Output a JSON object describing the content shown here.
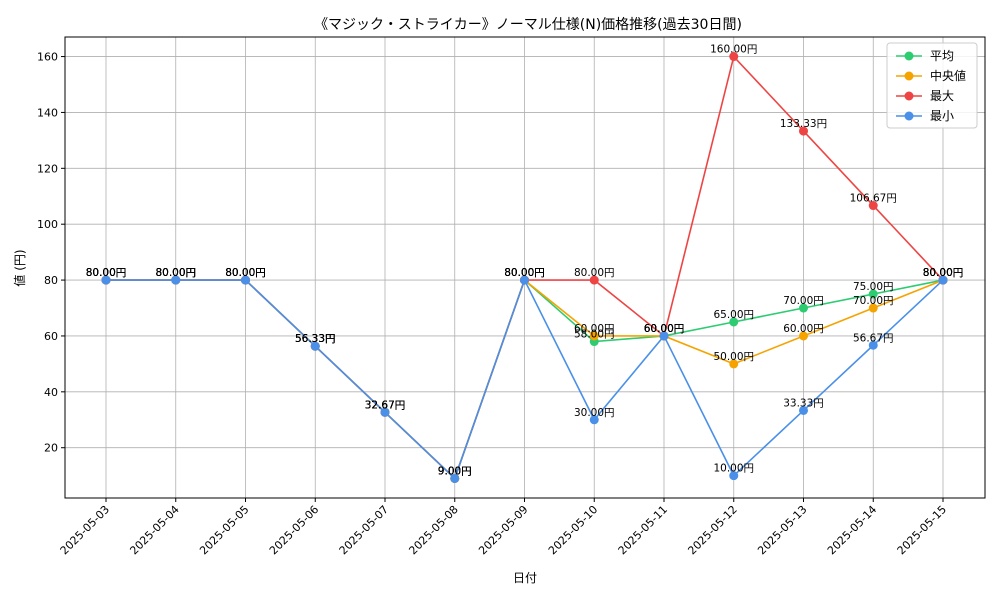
{
  "chart_data": {
    "type": "line",
    "title": "《マジック・ストライカー》ノーマル仕様(N)価格推移(過去30日間)",
    "xlabel": "日付",
    "ylabel": "値 (円)",
    "ylim": [
      2,
      167
    ],
    "yticks": [
      20,
      40,
      60,
      80,
      100,
      120,
      140,
      160
    ],
    "grid": true,
    "legend_position": "top-right",
    "label_suffix": "円",
    "categories": [
      "2025-05-03",
      "2025-05-04",
      "2025-05-05",
      "2025-05-06",
      "2025-05-07",
      "2025-05-08",
      "2025-05-09",
      "2025-05-10",
      "2025-05-11",
      "2025-05-12",
      "2025-05-13",
      "2025-05-14",
      "2025-05-15"
    ],
    "series": [
      {
        "name": "平均",
        "color": "#2ecc71",
        "values": [
          80,
          80,
          80,
          56.33,
          32.67,
          9,
          80,
          58,
          60,
          65,
          70,
          75,
          80
        ]
      },
      {
        "name": "中央値",
        "color": "#f5a300",
        "values": [
          80,
          80,
          80,
          56.33,
          32.67,
          9,
          80,
          60,
          60,
          50,
          60,
          70,
          80
        ]
      },
      {
        "name": "最大",
        "color": "#ee4444",
        "values": [
          80,
          80,
          80,
          56.33,
          32.67,
          9,
          80,
          80,
          60,
          160,
          133.33,
          106.67,
          80
        ]
      },
      {
        "name": "最小",
        "color": "#4a90e8",
        "values": [
          80,
          80,
          80,
          56.33,
          32.67,
          9,
          80,
          30,
          60,
          10,
          33.33,
          56.67,
          80
        ]
      }
    ]
  }
}
